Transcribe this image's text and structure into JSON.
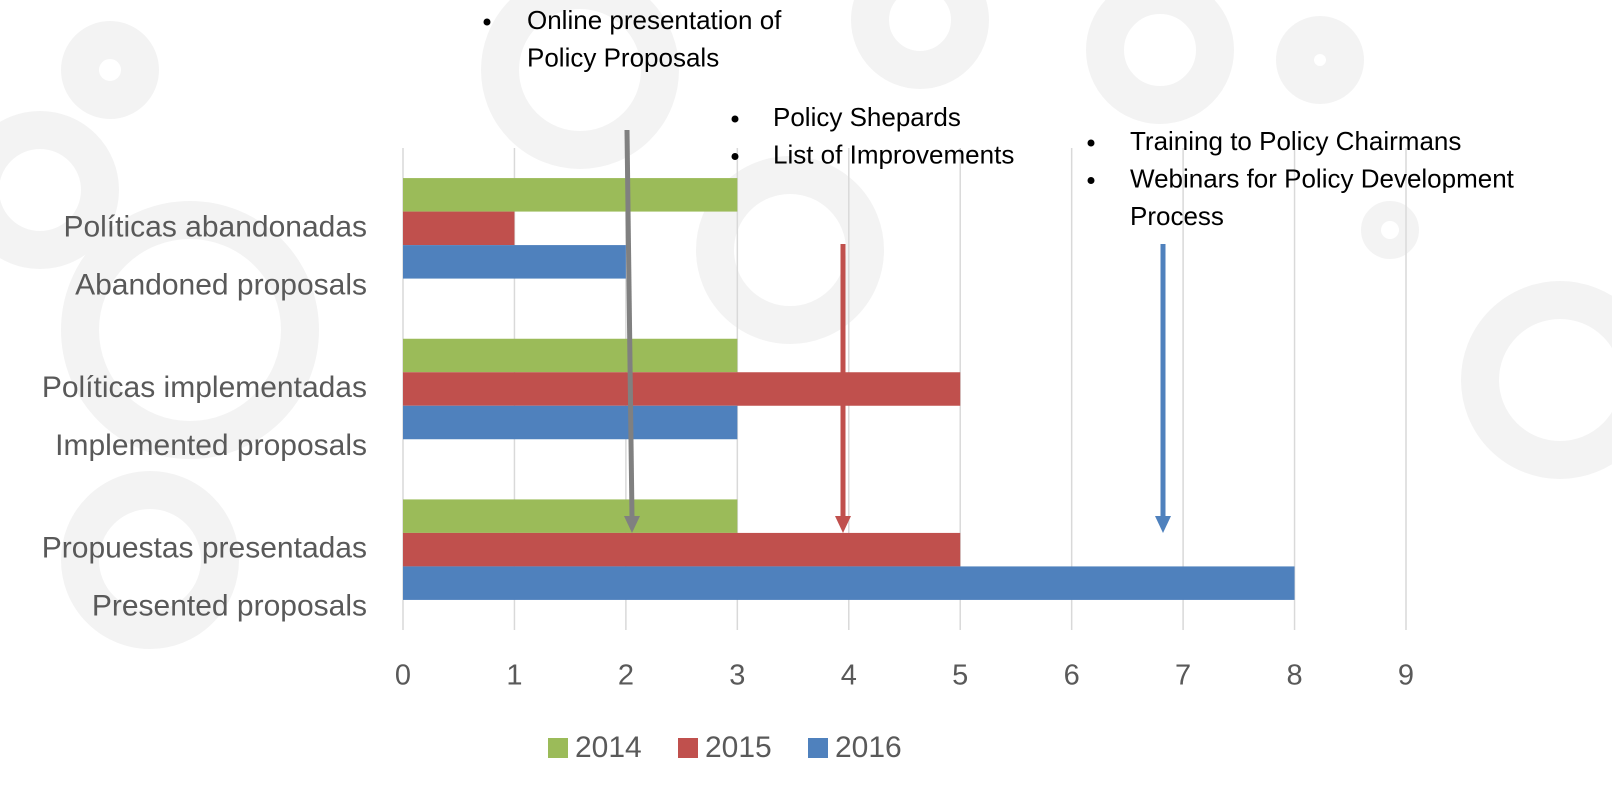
{
  "chart_data": {
    "type": "hbar",
    "categories": [
      [
        "Políticas abandonadas",
        "Abandoned proposals"
      ],
      [
        "Políticas implementadas",
        "Implemented proposals"
      ],
      [
        "Propuestas presentadas",
        "Presented proposals"
      ]
    ],
    "series": [
      {
        "name": "2014",
        "color": "#9bbb59",
        "values": [
          3,
          3,
          3
        ]
      },
      {
        "name": "2015",
        "color": "#c0504d",
        "values": [
          1,
          5,
          5
        ]
      },
      {
        "name": "2016",
        "color": "#4f81bd",
        "values": [
          2,
          3,
          8
        ]
      }
    ],
    "xlim": [
      0,
      9
    ],
    "xticks": [
      0,
      1,
      2,
      3,
      4,
      5,
      6,
      7,
      8,
      9
    ],
    "grid": true,
    "legend": "bottom",
    "annotations": [
      {
        "items": [
          [
            "Online presentation of",
            "Policy Proposals"
          ]
        ]
      },
      {
        "items": [
          [
            "Policy Shepards"
          ],
          [
            "List of Improvements"
          ]
        ]
      },
      {
        "items": [
          [
            "Training to Policy Chairmans"
          ],
          [
            "Webinars for Policy Development",
            "Process"
          ]
        ]
      }
    ]
  }
}
